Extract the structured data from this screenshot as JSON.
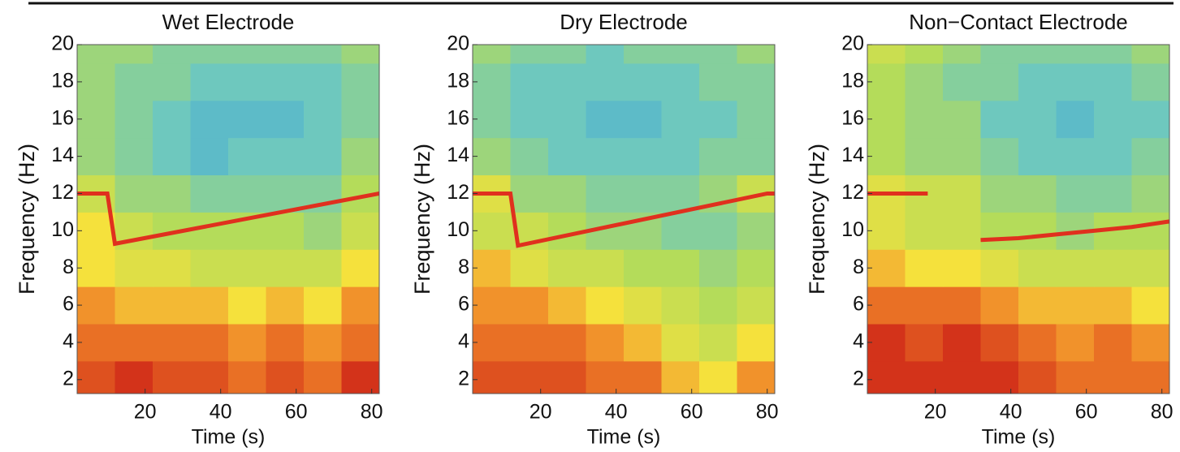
{
  "chart_data": [
    {
      "type": "heatmap",
      "title": "Wet Electrode",
      "xlabel": "Time (s)",
      "ylabel": "Frequency (Hz)",
      "xlim": [
        2,
        82
      ],
      "ylim": [
        1.25,
        20
      ],
      "xticks": [
        20,
        40,
        60,
        80
      ],
      "yticks": [
        2,
        4,
        6,
        8,
        10,
        12,
        14,
        16,
        18,
        20
      ],
      "colormap": "jet",
      "xbins": [
        2,
        12,
        22,
        32,
        42,
        52,
        62,
        72,
        82
      ],
      "ybins": [
        1.25,
        3,
        5,
        7,
        9,
        11,
        13,
        15,
        17,
        19,
        20
      ],
      "z": [
        [
          0.9,
          0.95,
          0.9,
          0.9,
          0.85,
          0.9,
          0.85,
          0.95
        ],
        [
          0.85,
          0.85,
          0.85,
          0.85,
          0.8,
          0.85,
          0.8,
          0.85
        ],
        [
          0.8,
          0.75,
          0.75,
          0.75,
          0.7,
          0.75,
          0.7,
          0.8
        ],
        [
          0.7,
          0.65,
          0.65,
          0.6,
          0.6,
          0.6,
          0.6,
          0.7
        ],
        [
          0.7,
          0.6,
          0.55,
          0.55,
          0.55,
          0.55,
          0.5,
          0.6
        ],
        [
          0.6,
          0.5,
          0.5,
          0.45,
          0.45,
          0.45,
          0.45,
          0.55
        ],
        [
          0.5,
          0.45,
          0.4,
          0.35,
          0.4,
          0.4,
          0.4,
          0.5
        ],
        [
          0.5,
          0.45,
          0.4,
          0.35,
          0.35,
          0.35,
          0.4,
          0.45
        ],
        [
          0.5,
          0.45,
          0.45,
          0.4,
          0.4,
          0.4,
          0.4,
          0.45
        ],
        [
          0.5,
          0.5,
          0.45,
          0.45,
          0.45,
          0.45,
          0.45,
          0.5
        ]
      ],
      "series": [
        {
          "color": "#e0301e",
          "x": [
            2,
            10,
            12,
            82
          ],
          "values": [
            12,
            12,
            9.3,
            12
          ]
        }
      ]
    },
    {
      "type": "heatmap",
      "title": "Dry Electrode",
      "xlabel": "Time (s)",
      "ylabel": "Frequency (Hz)",
      "xlim": [
        2,
        82
      ],
      "ylim": [
        1.25,
        20
      ],
      "xticks": [
        20,
        40,
        60,
        80
      ],
      "yticks": [
        2,
        4,
        6,
        8,
        10,
        12,
        14,
        16,
        18,
        20
      ],
      "colormap": "jet",
      "xbins": [
        2,
        12,
        22,
        32,
        42,
        52,
        62,
        72,
        82
      ],
      "ybins": [
        1.25,
        3,
        5,
        7,
        9,
        11,
        13,
        15,
        17,
        19,
        20
      ],
      "z": [
        [
          0.9,
          0.9,
          0.9,
          0.85,
          0.85,
          0.75,
          0.7,
          0.8
        ],
        [
          0.85,
          0.85,
          0.85,
          0.8,
          0.75,
          0.65,
          0.6,
          0.7
        ],
        [
          0.8,
          0.8,
          0.75,
          0.7,
          0.65,
          0.6,
          0.55,
          0.6
        ],
        [
          0.75,
          0.65,
          0.6,
          0.6,
          0.55,
          0.55,
          0.5,
          0.55
        ],
        [
          0.6,
          0.6,
          0.55,
          0.5,
          0.5,
          0.45,
          0.45,
          0.5
        ],
        [
          0.65,
          0.5,
          0.5,
          0.45,
          0.45,
          0.45,
          0.5,
          0.6
        ],
        [
          0.5,
          0.45,
          0.4,
          0.4,
          0.4,
          0.4,
          0.45,
          0.45
        ],
        [
          0.45,
          0.4,
          0.4,
          0.35,
          0.35,
          0.4,
          0.4,
          0.45
        ],
        [
          0.45,
          0.4,
          0.4,
          0.4,
          0.4,
          0.4,
          0.45,
          0.45
        ],
        [
          0.5,
          0.45,
          0.45,
          0.4,
          0.45,
          0.45,
          0.45,
          0.5
        ]
      ],
      "series": [
        {
          "color": "#e0301e",
          "x": [
            2,
            12,
            14,
            80,
            82
          ],
          "values": [
            12,
            12,
            9.2,
            12,
            12
          ]
        }
      ]
    },
    {
      "type": "heatmap",
      "title": "Non−Contact Electrode",
      "xlabel": "Time (s)",
      "ylabel": "Frequency (Hz)",
      "xlim": [
        2,
        82
      ],
      "ylim": [
        1.25,
        20
      ],
      "xticks": [
        20,
        40,
        60,
        80
      ],
      "yticks": [
        2,
        4,
        6,
        8,
        10,
        12,
        14,
        16,
        18,
        20
      ],
      "colormap": "jet",
      "xbins": [
        2,
        12,
        22,
        32,
        42,
        52,
        62,
        72,
        82
      ],
      "ybins": [
        1.25,
        3,
        5,
        7,
        9,
        11,
        13,
        15,
        17,
        19,
        20
      ],
      "z": [
        [
          0.95,
          0.95,
          0.95,
          0.95,
          0.9,
          0.85,
          0.85,
          0.85
        ],
        [
          0.95,
          0.9,
          0.95,
          0.9,
          0.85,
          0.8,
          0.85,
          0.8
        ],
        [
          0.85,
          0.85,
          0.85,
          0.8,
          0.75,
          0.75,
          0.75,
          0.7
        ],
        [
          0.75,
          0.7,
          0.7,
          0.65,
          0.6,
          0.6,
          0.6,
          0.6
        ],
        [
          0.65,
          0.6,
          0.6,
          0.55,
          0.55,
          0.5,
          0.55,
          0.55
        ],
        [
          0.65,
          0.6,
          0.6,
          0.5,
          0.5,
          0.45,
          0.45,
          0.5
        ],
        [
          0.55,
          0.5,
          0.5,
          0.45,
          0.4,
          0.4,
          0.4,
          0.45
        ],
        [
          0.55,
          0.5,
          0.5,
          0.4,
          0.4,
          0.35,
          0.4,
          0.4
        ],
        [
          0.55,
          0.5,
          0.45,
          0.45,
          0.4,
          0.4,
          0.4,
          0.45
        ],
        [
          0.6,
          0.55,
          0.5,
          0.45,
          0.45,
          0.45,
          0.45,
          0.5
        ]
      ],
      "series": [
        {
          "color": "#e0301e",
          "x": [
            2,
            18,
            25,
            32,
            42,
            52,
            62,
            72,
            82
          ],
          "values": [
            12,
            12,
            null,
            9.5,
            9.6,
            9.8,
            10,
            10.2,
            10.5
          ]
        }
      ]
    }
  ]
}
